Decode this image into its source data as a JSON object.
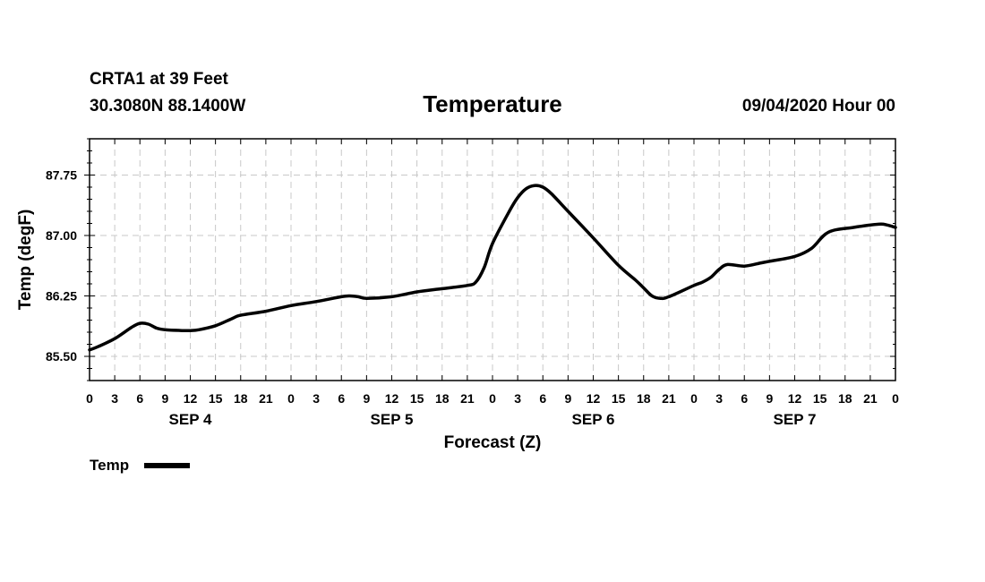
{
  "header": {
    "station": "CRTA1 at 39 Feet",
    "coords": "30.3080N 88.1400W",
    "title": "Temperature",
    "datetime": "09/04/2020 Hour 00"
  },
  "colors": {
    "line": "#000000",
    "grid": "#c8c8c8",
    "frame": "#000000",
    "background": "#ffffff"
  },
  "legend": {
    "label": "Temp"
  },
  "chart_data": {
    "type": "line",
    "title": "Temperature",
    "xlabel": "Forecast (Z)",
    "ylabel": "Temp (degF)",
    "xlim": [
      0,
      96
    ],
    "ylim": [
      85.2,
      88.2
    ],
    "yticks": [
      85.5,
      86.25,
      87.0,
      87.75
    ],
    "ytick_labels": [
      "85.50",
      "86.25",
      "87.00",
      "87.75"
    ],
    "yminor_step": 0.15,
    "xticks": [
      0,
      3,
      6,
      9,
      12,
      15,
      18,
      21,
      24,
      27,
      30,
      33,
      36,
      39,
      42,
      45,
      48,
      51,
      54,
      57,
      60,
      63,
      66,
      69,
      72,
      75,
      78,
      81,
      84,
      87,
      90,
      93,
      96
    ],
    "xtick_labels": [
      "0",
      "3",
      "6",
      "9",
      "12",
      "15",
      "18",
      "21",
      "0",
      "3",
      "6",
      "9",
      "12",
      "15",
      "18",
      "21",
      "0",
      "3",
      "6",
      "9",
      "12",
      "15",
      "18",
      "21",
      "0",
      "3",
      "6",
      "9",
      "12",
      "15",
      "18",
      "21",
      "0"
    ],
    "day_labels": [
      {
        "label": "SEP 4",
        "x": 12
      },
      {
        "label": "SEP 5",
        "x": 36
      },
      {
        "label": "SEP 6",
        "x": 60
      },
      {
        "label": "SEP 7",
        "x": 84
      }
    ],
    "grid": true,
    "legend_position": "bottom-left",
    "series": [
      {
        "name": "Temp",
        "x": [
          0,
          1,
          3,
          5,
          6,
          7,
          8,
          9,
          11,
          12,
          13,
          15,
          17,
          18,
          21,
          24,
          27,
          30,
          31,
          32,
          33,
          36,
          39,
          42,
          45,
          46,
          47,
          48,
          50,
          51,
          52,
          53,
          54,
          55,
          57,
          60,
          63,
          65,
          66,
          67,
          68,
          69,
          72,
          73,
          74,
          75,
          76,
          78,
          80,
          81,
          84,
          86,
          88,
          91,
          94,
          95,
          96
        ],
        "values": [
          85.58,
          85.62,
          85.72,
          85.86,
          85.91,
          85.9,
          85.85,
          85.83,
          85.82,
          85.82,
          85.83,
          85.88,
          85.97,
          86.01,
          86.06,
          86.13,
          86.18,
          86.24,
          86.25,
          86.24,
          86.22,
          86.24,
          86.3,
          86.34,
          86.38,
          86.42,
          86.6,
          86.9,
          87.3,
          87.47,
          87.58,
          87.62,
          87.6,
          87.52,
          87.3,
          86.97,
          86.63,
          86.45,
          86.35,
          86.25,
          86.22,
          86.24,
          86.38,
          86.42,
          86.48,
          86.58,
          86.64,
          86.62,
          86.66,
          86.68,
          86.74,
          86.84,
          87.04,
          87.1,
          87.14,
          87.13,
          87.1
        ]
      }
    ]
  }
}
